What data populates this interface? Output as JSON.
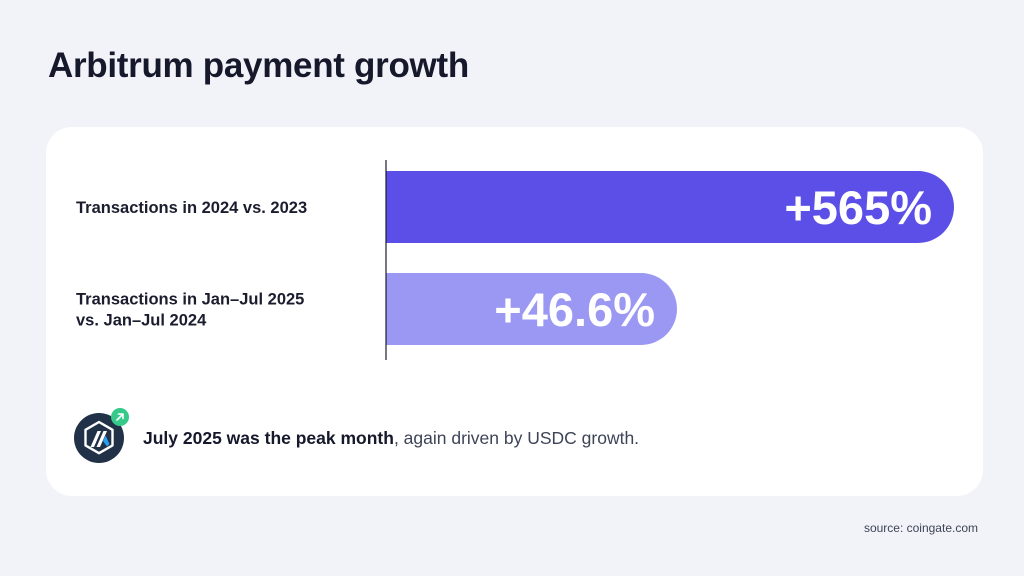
{
  "title": "Arbitrum payment growth",
  "colors": {
    "background": "#f2f3f8",
    "card": "#ffffff",
    "bar_primary": "#5b4fe8",
    "bar_secondary": "#9b98f3",
    "axis": "#1b1d2e",
    "badge": "#36c98a",
    "logo_bg": "#213147",
    "logo_accent": "#28a0f0"
  },
  "chart_data": {
    "type": "bar",
    "orientation": "horizontal",
    "categories": [
      [
        "Transactions in 2024 vs. 2023"
      ],
      [
        "Transactions in Jan–Jul 2025",
        "vs. Jan–Jul 2024"
      ]
    ],
    "values": [
      565,
      46.6
    ],
    "value_labels": [
      "+565%",
      "+46.6%"
    ],
    "unit": "%",
    "grid": false,
    "legend": "none"
  },
  "note": {
    "icon": "arbitrum-logo-icon",
    "badge_icon": "trend-up-arrow-icon",
    "bold_text": "July 2025 was the peak month",
    "rest_text": ", again driven by USDC growth."
  },
  "source": "source: coingate.com"
}
